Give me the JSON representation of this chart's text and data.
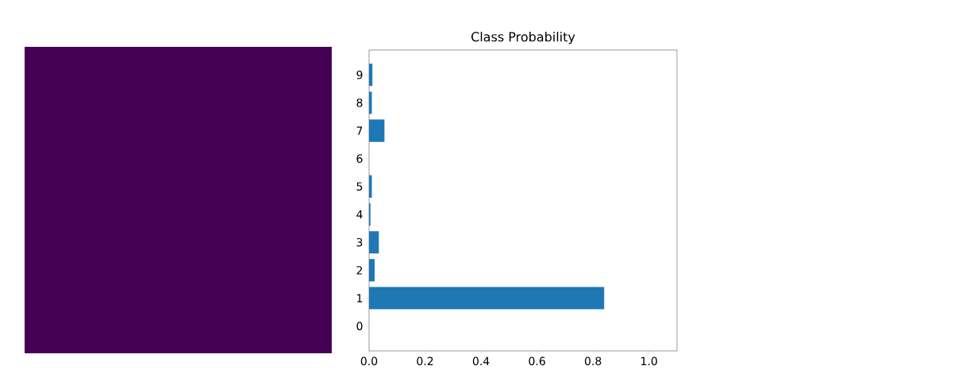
{
  "chart_data": {
    "type": "bar",
    "orientation": "horizontal",
    "title": "Class Probability",
    "categories": [
      "9",
      "8",
      "7",
      "6",
      "5",
      "4",
      "3",
      "2",
      "1",
      "0"
    ],
    "values": [
      0.012,
      0.01,
      0.055,
      null,
      0.01,
      0.005,
      0.035,
      0.02,
      0.84,
      null
    ],
    "color": "#1f77b4",
    "xlim": [
      0,
      1.1
    ],
    "xticks": [
      {
        "value": 0,
        "label": "0.0"
      },
      {
        "value": 0.2,
        "label": "0.2"
      },
      {
        "value": 0.4,
        "label": "0.4"
      },
      {
        "value": 0.6,
        "label": "0.6"
      },
      {
        "value": 0.8,
        "label": "0.8"
      },
      {
        "value": 1.0,
        "label": "1.0"
      }
    ]
  }
}
